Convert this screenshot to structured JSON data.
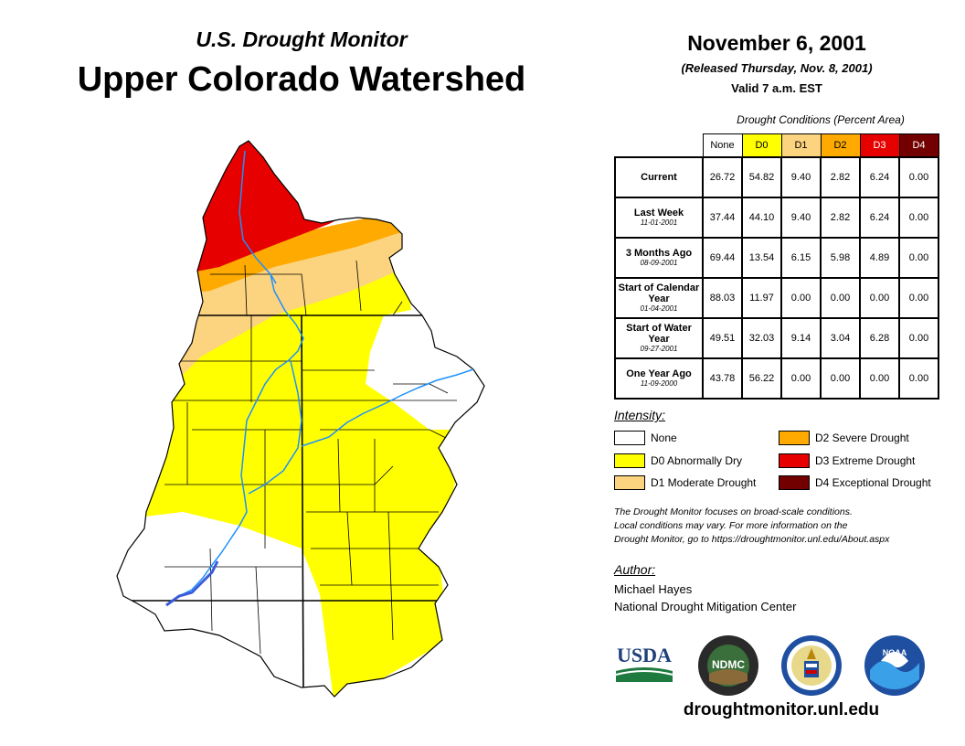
{
  "header": {
    "subtitle": "U.S. Drought Monitor",
    "title": "Upper Colorado Watershed",
    "date": "November 6, 2001",
    "released": "(Released Thursday, Nov. 8, 2001)",
    "valid": "Valid 7 a.m. EST"
  },
  "table": {
    "caption": "Drought Conditions (Percent Area)",
    "columns": [
      "None",
      "D0",
      "D1",
      "D2",
      "D3",
      "D4"
    ],
    "column_colors": [
      "#ffffff",
      "#ffff00",
      "#fcd37f",
      "#ffaa00",
      "#e60000",
      "#730000"
    ],
    "column_text_colors": [
      "#000000",
      "#000000",
      "#000000",
      "#000000",
      "#ffffff",
      "#ffffff"
    ],
    "rows": [
      {
        "label": "Current",
        "sub": "",
        "values": [
          "26.72",
          "54.82",
          "9.40",
          "2.82",
          "6.24",
          "0.00"
        ]
      },
      {
        "label": "Last Week",
        "sub": "11-01-2001",
        "values": [
          "37.44",
          "44.10",
          "9.40",
          "2.82",
          "6.24",
          "0.00"
        ]
      },
      {
        "label": "3 Months Ago",
        "sub": "08-09-2001",
        "values": [
          "69.44",
          "13.54",
          "6.15",
          "5.98",
          "4.89",
          "0.00"
        ]
      },
      {
        "label": "Start of Calendar Year",
        "sub": "01-04-2001",
        "values": [
          "88.03",
          "11.97",
          "0.00",
          "0.00",
          "0.00",
          "0.00"
        ]
      },
      {
        "label": "Start of Water Year",
        "sub": "09-27-2001",
        "values": [
          "49.51",
          "32.03",
          "9.14",
          "3.04",
          "6.28",
          "0.00"
        ]
      },
      {
        "label": "One Year Ago",
        "sub": "11-09-2000",
        "values": [
          "43.78",
          "56.22",
          "0.00",
          "0.00",
          "0.00",
          "0.00"
        ]
      }
    ]
  },
  "legend": {
    "title": "Intensity:",
    "items": [
      {
        "label": "None",
        "color": "#ffffff"
      },
      {
        "label": "D0 Abnormally Dry",
        "color": "#ffff00"
      },
      {
        "label": "D1 Moderate Drought",
        "color": "#fcd37f"
      },
      {
        "label": "D2 Severe Drought",
        "color": "#ffaa00"
      },
      {
        "label": "D3 Extreme Drought",
        "color": "#e60000"
      },
      {
        "label": "D4 Exceptional Drought",
        "color": "#730000"
      }
    ]
  },
  "note": {
    "line1": "The Drought Monitor focuses on broad-scale conditions.",
    "line2": "Local conditions may vary. For more information on the",
    "line3": "Drought Monitor, go to https://droughtmonitor.unl.edu/About.aspx"
  },
  "author": {
    "label": "Author:",
    "name": "Michael Hayes",
    "org": "National Drought Mitigation Center"
  },
  "logos": {
    "usda": "USDA",
    "ndmc": "NDMC",
    "noaa": "NOAA"
  },
  "footer": {
    "site": "droughtmonitor.unl.edu"
  },
  "map": {
    "river_color": "#1e90ff",
    "lake_color": "#3b5bdb"
  }
}
